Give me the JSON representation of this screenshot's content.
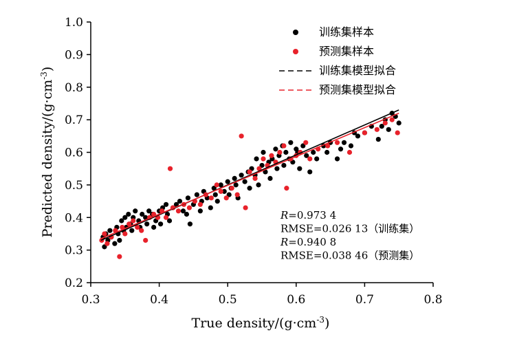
{
  "chart_data": {
    "type": "scatter",
    "xlabel": "True density/(g·cm",
    "xlabel_sup": "-3",
    "xlabel_tail": ")",
    "ylabel": "Predicted density/(g·cm",
    "ylabel_sup": "-3",
    "ylabel_tail": ")",
    "xlim": [
      0.3,
      0.8
    ],
    "ylim": [
      0.2,
      1.0
    ],
    "x_ticks": [
      "0.3",
      "0.4",
      "0.5",
      "0.6",
      "0.7",
      "0.8"
    ],
    "y_ticks": [
      "0.2",
      "0.3",
      "0.4",
      "0.5",
      "0.6",
      "0.7",
      "0.8",
      "0.9",
      "1.0"
    ],
    "grid": false,
    "legend_position": "top-right",
    "legend": [
      {
        "label": "训练集样本",
        "kind": "marker",
        "color": "#000000"
      },
      {
        "label": "预测集样本",
        "kind": "marker",
        "color": "#e8222b"
      },
      {
        "label": "训练集模型拟合",
        "kind": "dashed-line",
        "color": "#000000"
      },
      {
        "label": "预测集模型拟合",
        "kind": "dashed-line",
        "color": "#e8222b"
      }
    ],
    "annotations": [
      {
        "label": "R",
        "value": "=0.973 4"
      },
      {
        "label": "RMSE",
        "value": "=0.026 13（训练集）"
      },
      {
        "label": "R",
        "value": "=0.940 8"
      },
      {
        "label": "RMSE",
        "value": "=0.038 46（预测集）"
      }
    ],
    "fits": [
      {
        "name": "训练集模型拟合",
        "x": [
          0.315,
          0.75
        ],
        "y": [
          0.33,
          0.73
        ],
        "color": "#000000"
      },
      {
        "name": "预测集模型拟合",
        "x": [
          0.315,
          0.75
        ],
        "y": [
          0.335,
          0.72
        ],
        "color": "#e8222b"
      }
    ],
    "series": [
      {
        "name": "训练集样本",
        "color": "#000000",
        "points": [
          [
            0.318,
            0.34
          ],
          [
            0.32,
            0.31
          ],
          [
            0.322,
            0.35
          ],
          [
            0.325,
            0.33
          ],
          [
            0.328,
            0.36
          ],
          [
            0.33,
            0.34
          ],
          [
            0.335,
            0.32
          ],
          [
            0.338,
            0.37
          ],
          [
            0.34,
            0.35
          ],
          [
            0.342,
            0.33
          ],
          [
            0.345,
            0.39
          ],
          [
            0.348,
            0.36
          ],
          [
            0.35,
            0.4
          ],
          [
            0.352,
            0.37
          ],
          [
            0.355,
            0.41
          ],
          [
            0.358,
            0.38
          ],
          [
            0.36,
            0.36
          ],
          [
            0.362,
            0.4
          ],
          [
            0.365,
            0.42
          ],
          [
            0.37,
            0.39
          ],
          [
            0.372,
            0.37
          ],
          [
            0.375,
            0.41
          ],
          [
            0.38,
            0.4
          ],
          [
            0.382,
            0.38
          ],
          [
            0.385,
            0.42
          ],
          [
            0.39,
            0.41
          ],
          [
            0.392,
            0.37
          ],
          [
            0.395,
            0.39
          ],
          [
            0.4,
            0.42
          ],
          [
            0.402,
            0.38
          ],
          [
            0.405,
            0.43
          ],
          [
            0.41,
            0.44
          ],
          [
            0.412,
            0.41
          ],
          [
            0.415,
            0.39
          ],
          [
            0.42,
            0.43
          ],
          [
            0.425,
            0.44
          ],
          [
            0.43,
            0.45
          ],
          [
            0.435,
            0.42
          ],
          [
            0.44,
            0.41
          ],
          [
            0.442,
            0.46
          ],
          [
            0.445,
            0.38
          ],
          [
            0.45,
            0.44
          ],
          [
            0.455,
            0.47
          ],
          [
            0.46,
            0.42
          ],
          [
            0.462,
            0.45
          ],
          [
            0.465,
            0.48
          ],
          [
            0.47,
            0.46
          ],
          [
            0.475,
            0.43
          ],
          [
            0.48,
            0.49
          ],
          [
            0.482,
            0.47
          ],
          [
            0.485,
            0.45
          ],
          [
            0.49,
            0.5
          ],
          [
            0.495,
            0.48
          ],
          [
            0.5,
            0.51
          ],
          [
            0.502,
            0.47
          ],
          [
            0.505,
            0.49
          ],
          [
            0.51,
            0.52
          ],
          [
            0.512,
            0.5
          ],
          [
            0.515,
            0.46
          ],
          [
            0.52,
            0.53
          ],
          [
            0.525,
            0.51
          ],
          [
            0.53,
            0.54
          ],
          [
            0.532,
            0.49
          ],
          [
            0.535,
            0.55
          ],
          [
            0.54,
            0.53
          ],
          [
            0.542,
            0.58
          ],
          [
            0.545,
            0.5
          ],
          [
            0.55,
            0.56
          ],
          [
            0.552,
            0.6
          ],
          [
            0.555,
            0.54
          ],
          [
            0.56,
            0.57
          ],
          [
            0.562,
            0.52
          ],
          [
            0.565,
            0.58
          ],
          [
            0.57,
            0.61
          ],
          [
            0.572,
            0.55
          ],
          [
            0.575,
            0.59
          ],
          [
            0.58,
            0.62
          ],
          [
            0.582,
            0.56
          ],
          [
            0.585,
            0.6
          ],
          [
            0.59,
            0.58
          ],
          [
            0.592,
            0.63
          ],
          [
            0.595,
            0.57
          ],
          [
            0.6,
            0.61
          ],
          [
            0.602,
            0.6
          ],
          [
            0.605,
            0.55
          ],
          [
            0.61,
            0.62
          ],
          [
            0.615,
            0.59
          ],
          [
            0.62,
            0.54
          ],
          [
            0.625,
            0.6
          ],
          [
            0.63,
            0.58
          ],
          [
            0.64,
            0.62
          ],
          [
            0.645,
            0.6
          ],
          [
            0.65,
            0.63
          ],
          [
            0.66,
            0.58
          ],
          [
            0.665,
            0.61
          ],
          [
            0.67,
            0.63
          ],
          [
            0.68,
            0.62
          ],
          [
            0.685,
            0.66
          ],
          [
            0.69,
            0.65
          ],
          [
            0.7,
            0.66
          ],
          [
            0.71,
            0.68
          ],
          [
            0.72,
            0.64
          ],
          [
            0.725,
            0.68
          ],
          [
            0.73,
            0.7
          ],
          [
            0.735,
            0.67
          ],
          [
            0.74,
            0.72
          ],
          [
            0.745,
            0.71
          ],
          [
            0.75,
            0.69
          ]
        ]
      },
      {
        "name": "预测集样本",
        "color": "#e8222b",
        "points": [
          [
            0.316,
            0.33
          ],
          [
            0.32,
            0.35
          ],
          [
            0.324,
            0.32
          ],
          [
            0.33,
            0.34
          ],
          [
            0.336,
            0.36
          ],
          [
            0.342,
            0.28
          ],
          [
            0.346,
            0.37
          ],
          [
            0.35,
            0.35
          ],
          [
            0.356,
            0.38
          ],
          [
            0.362,
            0.39
          ],
          [
            0.368,
            0.37
          ],
          [
            0.374,
            0.36
          ],
          [
            0.38,
            0.33
          ],
          [
            0.386,
            0.4
          ],
          [
            0.392,
            0.41
          ],
          [
            0.398,
            0.4
          ],
          [
            0.404,
            0.42
          ],
          [
            0.41,
            0.4
          ],
          [
            0.416,
            0.55
          ],
          [
            0.42,
            0.43
          ],
          [
            0.428,
            0.42
          ],
          [
            0.436,
            0.44
          ],
          [
            0.444,
            0.43
          ],
          [
            0.452,
            0.45
          ],
          [
            0.46,
            0.44
          ],
          [
            0.468,
            0.47
          ],
          [
            0.476,
            0.46
          ],
          [
            0.484,
            0.5
          ],
          [
            0.49,
            0.48
          ],
          [
            0.498,
            0.46
          ],
          [
            0.506,
            0.49
          ],
          [
            0.514,
            0.47
          ],
          [
            0.52,
            0.65
          ],
          [
            0.526,
            0.43
          ],
          [
            0.532,
            0.54
          ],
          [
            0.54,
            0.52
          ],
          [
            0.546,
            0.55
          ],
          [
            0.552,
            0.58
          ],
          [
            0.558,
            0.56
          ],
          [
            0.564,
            0.59
          ],
          [
            0.57,
            0.57
          ],
          [
            0.576,
            0.6
          ],
          [
            0.582,
            0.62
          ],
          [
            0.586,
            0.49
          ],
          [
            0.592,
            0.58
          ],
          [
            0.6,
            0.59
          ],
          [
            0.606,
            0.6
          ],
          [
            0.614,
            0.63
          ],
          [
            0.62,
            0.58
          ],
          [
            0.632,
            0.61
          ],
          [
            0.646,
            0.62
          ],
          [
            0.66,
            0.63
          ],
          [
            0.678,
            0.6
          ],
          [
            0.7,
            0.66
          ],
          [
            0.718,
            0.67
          ],
          [
            0.73,
            0.69
          ],
          [
            0.74,
            0.7
          ],
          [
            0.748,
            0.66
          ]
        ]
      }
    ]
  }
}
